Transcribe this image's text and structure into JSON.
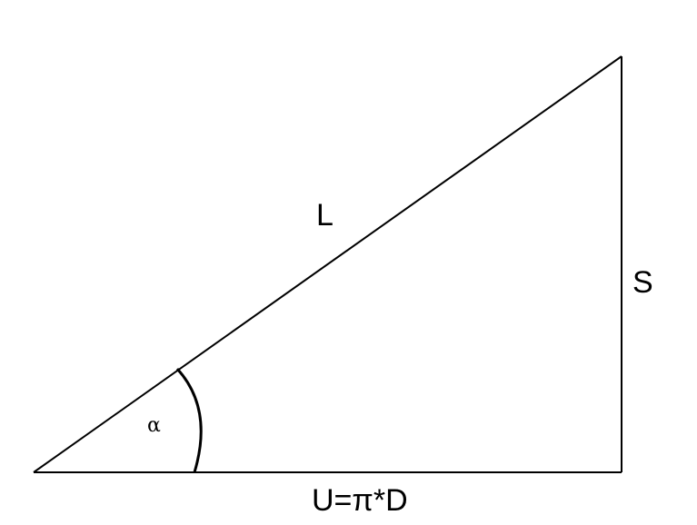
{
  "labels": {
    "hypotenuse": "L",
    "vertical": "S",
    "base": "U=π*D",
    "angle": "α"
  },
  "colors": {
    "stroke": "#000000",
    "background": "#ffffff"
  }
}
